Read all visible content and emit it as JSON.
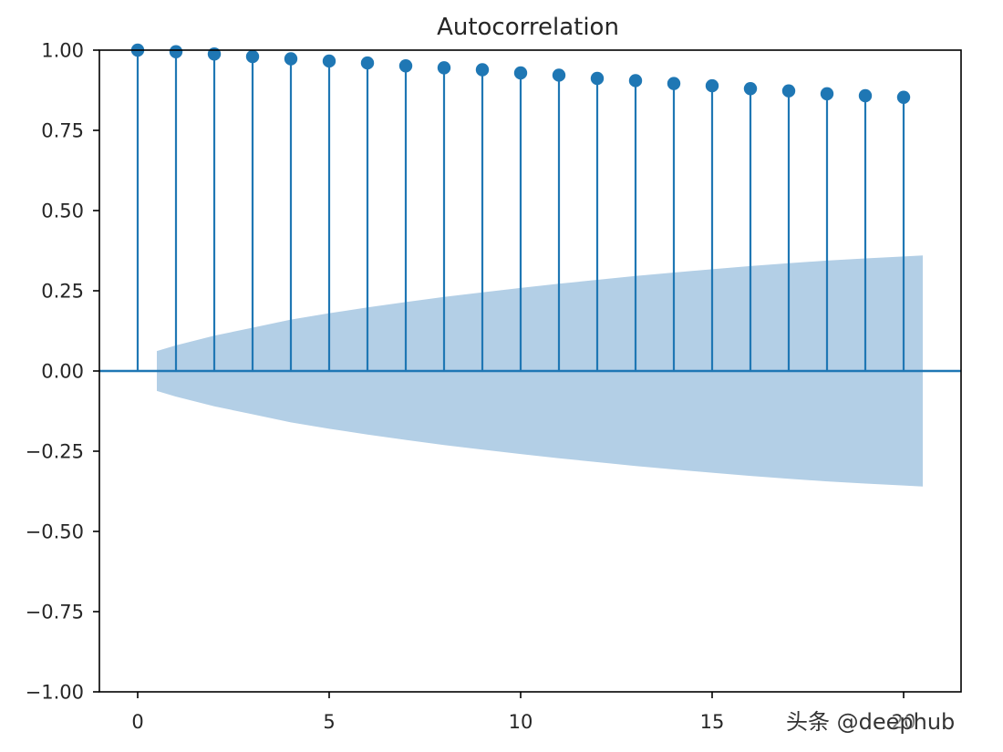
{
  "chart_data": {
    "type": "stem",
    "title": "Autocorrelation",
    "xlabel": "",
    "ylabel": "",
    "xlim": [
      -1,
      21.5
    ],
    "ylim": [
      -1,
      1
    ],
    "x_ticks": [
      0,
      5,
      10,
      15,
      20
    ],
    "x_tick_labels": [
      "0",
      "5",
      "10",
      "15",
      "20"
    ],
    "y_ticks": [
      -1,
      -0.75,
      -0.5,
      -0.25,
      0,
      0.25,
      0.5,
      0.75,
      1
    ],
    "y_tick_labels": [
      "−1.00",
      "−0.75",
      "−0.50",
      "−0.25",
      "0.00",
      "0.25",
      "0.50",
      "0.75",
      "1.00"
    ],
    "grid": false,
    "colors": {
      "stem": "#1f77b4",
      "band": "#b3cfe6",
      "axes": "#000000"
    },
    "lags": [
      0,
      1,
      2,
      3,
      4,
      5,
      6,
      7,
      8,
      9,
      10,
      11,
      12,
      13,
      14,
      15,
      16,
      17,
      18,
      19,
      20
    ],
    "acf": [
      1.0,
      0.995,
      0.988,
      0.98,
      0.973,
      0.966,
      0.96,
      0.951,
      0.945,
      0.939,
      0.929,
      0.922,
      0.912,
      0.905,
      0.896,
      0.889,
      0.88,
      0.873,
      0.864,
      0.858,
      0.853
    ],
    "confidence_band": {
      "x": [
        0.5,
        1,
        2,
        3,
        4,
        5,
        6,
        7,
        8,
        9,
        10,
        11,
        12,
        13,
        14,
        15,
        16,
        17,
        18,
        19,
        20,
        20.5
      ],
      "upper": [
        0.062,
        0.08,
        0.11,
        0.135,
        0.16,
        0.18,
        0.198,
        0.215,
        0.231,
        0.245,
        0.259,
        0.272,
        0.284,
        0.296,
        0.307,
        0.317,
        0.327,
        0.336,
        0.344,
        0.351,
        0.357,
        0.36
      ]
    }
  },
  "watermark": {
    "text": "头条 @deephub"
  }
}
